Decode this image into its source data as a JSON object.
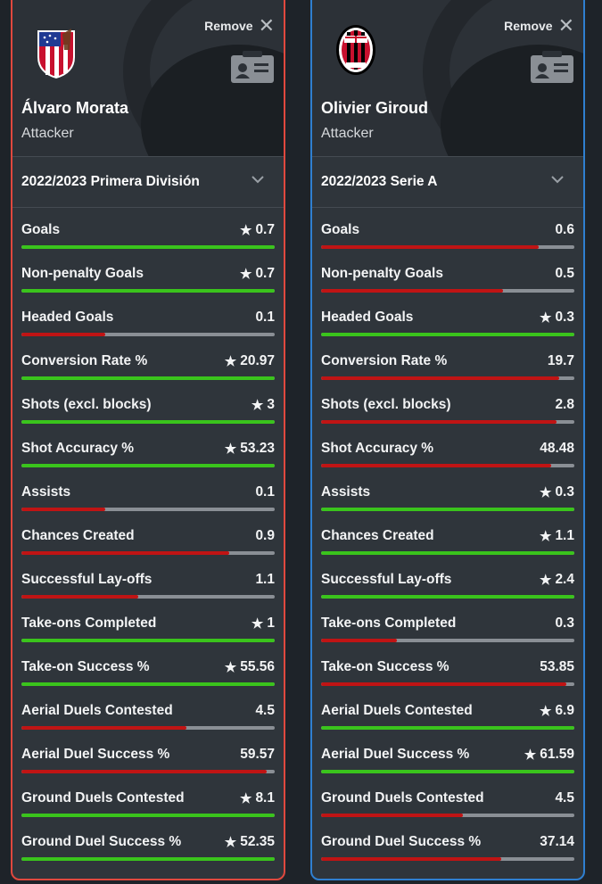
{
  "players": [
    {
      "remove_label": "Remove",
      "name": "Álvaro Morata",
      "position": "Attacker",
      "season": "2022/2023 Primera División",
      "crest": "atletico-madrid-crest",
      "border_color": "#e0483e",
      "stats": [
        {
          "label": "Goals",
          "value": "0.7",
          "star": true,
          "fill": 1.0,
          "color": "#3ac41c"
        },
        {
          "label": "Non-penalty Goals",
          "value": "0.7",
          "star": true,
          "fill": 1.0,
          "color": "#3ac41c"
        },
        {
          "label": "Headed Goals",
          "value": "0.1",
          "star": false,
          "fill": 0.33,
          "color": "#c01414"
        },
        {
          "label": "Conversion Rate %",
          "value": "20.97",
          "star": true,
          "fill": 1.0,
          "color": "#3ac41c"
        },
        {
          "label": "Shots (excl. blocks)",
          "value": "3",
          "star": true,
          "fill": 1.0,
          "color": "#3ac41c"
        },
        {
          "label": "Shot Accuracy %",
          "value": "53.23",
          "star": true,
          "fill": 1.0,
          "color": "#3ac41c"
        },
        {
          "label": "Assists",
          "value": "0.1",
          "star": false,
          "fill": 0.33,
          "color": "#c01414"
        },
        {
          "label": "Chances Created",
          "value": "0.9",
          "star": false,
          "fill": 0.82,
          "color": "#c01414"
        },
        {
          "label": "Successful Lay-offs",
          "value": "1.1",
          "star": false,
          "fill": 0.46,
          "color": "#c01414"
        },
        {
          "label": "Take-ons Completed",
          "value": "1",
          "star": true,
          "fill": 1.0,
          "color": "#3ac41c"
        },
        {
          "label": "Take-on Success %",
          "value": "55.56",
          "star": true,
          "fill": 1.0,
          "color": "#3ac41c"
        },
        {
          "label": "Aerial Duels Contested",
          "value": "4.5",
          "star": false,
          "fill": 0.65,
          "color": "#c01414"
        },
        {
          "label": "Aerial Duel Success %",
          "value": "59.57",
          "star": false,
          "fill": 0.97,
          "color": "#c01414"
        },
        {
          "label": "Ground Duels Contested",
          "value": "8.1",
          "star": true,
          "fill": 1.0,
          "color": "#3ac41c"
        },
        {
          "label": "Ground Duel Success %",
          "value": "52.35",
          "star": true,
          "fill": 1.0,
          "color": "#3ac41c"
        }
      ]
    },
    {
      "remove_label": "Remove",
      "name": "Olivier Giroud",
      "position": "Attacker",
      "season": "2022/2023 Serie A",
      "crest": "ac-milan-crest",
      "border_color": "#2f7fd0",
      "stats": [
        {
          "label": "Goals",
          "value": "0.6",
          "star": false,
          "fill": 0.86,
          "color": "#c01414"
        },
        {
          "label": "Non-penalty Goals",
          "value": "0.5",
          "star": false,
          "fill": 0.72,
          "color": "#c01414"
        },
        {
          "label": "Headed Goals",
          "value": "0.3",
          "star": true,
          "fill": 1.0,
          "color": "#3ac41c"
        },
        {
          "label": "Conversion Rate %",
          "value": "19.7",
          "star": false,
          "fill": 0.94,
          "color": "#c01414"
        },
        {
          "label": "Shots (excl. blocks)",
          "value": "2.8",
          "star": false,
          "fill": 0.93,
          "color": "#c01414"
        },
        {
          "label": "Shot Accuracy %",
          "value": "48.48",
          "star": false,
          "fill": 0.91,
          "color": "#c01414"
        },
        {
          "label": "Assists",
          "value": "0.3",
          "star": true,
          "fill": 1.0,
          "color": "#3ac41c"
        },
        {
          "label": "Chances Created",
          "value": "1.1",
          "star": true,
          "fill": 1.0,
          "color": "#3ac41c"
        },
        {
          "label": "Successful Lay-offs",
          "value": "2.4",
          "star": true,
          "fill": 1.0,
          "color": "#3ac41c"
        },
        {
          "label": "Take-ons Completed",
          "value": "0.3",
          "star": false,
          "fill": 0.3,
          "color": "#c01414"
        },
        {
          "label": "Take-on Success %",
          "value": "53.85",
          "star": false,
          "fill": 0.97,
          "color": "#c01414"
        },
        {
          "label": "Aerial Duels Contested",
          "value": "6.9",
          "star": true,
          "fill": 1.0,
          "color": "#3ac41c"
        },
        {
          "label": "Aerial Duel Success %",
          "value": "61.59",
          "star": true,
          "fill": 1.0,
          "color": "#3ac41c"
        },
        {
          "label": "Ground Duels Contested",
          "value": "4.5",
          "star": false,
          "fill": 0.56,
          "color": "#c01414"
        },
        {
          "label": "Ground Duel Success %",
          "value": "37.14",
          "star": false,
          "fill": 0.71,
          "color": "#c01414"
        }
      ]
    }
  ]
}
